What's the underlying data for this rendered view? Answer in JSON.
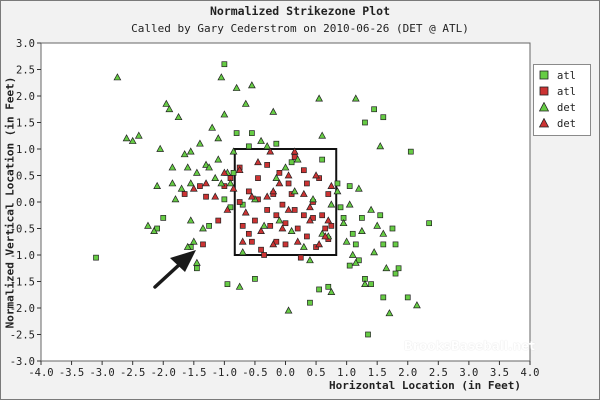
{
  "chart_data": {
    "type": "scatter",
    "title": "Normalized Strikezone Plot",
    "subtitle": "Called by Gary Cederstrom on 2010-06-26 (DET @ ATL)",
    "xlabel": "Horizontal Location (in Feet)",
    "ylabel": "Normalized Vertical Location (in Feet)",
    "xlim": [
      -4.0,
      4.0
    ],
    "ylim": [
      -3.0,
      3.0
    ],
    "x_ticks": [
      "-4.0",
      "-3.5",
      "-3.0",
      "-2.5",
      "-2.0",
      "-1.5",
      "-1.0",
      "-0.5",
      "0.0",
      "0.5",
      "1.0",
      "1.5",
      "2.0",
      "2.5",
      "3.0",
      "3.5",
      "4.0"
    ],
    "y_ticks": [
      "3.0",
      "2.5",
      "2.0",
      "1.5",
      "1.0",
      "0.5",
      "0.0",
      "-0.5",
      "-1.0",
      "-1.5",
      "-2.0",
      "-2.5",
      "-3.0"
    ],
    "grid": false,
    "legend_position": "top-right",
    "strike_zone": {
      "x": [
        -0.83,
        0.83
      ],
      "y": [
        -1.0,
        1.0
      ]
    },
    "series": [
      {
        "name": "atl",
        "marker": "square",
        "color": "#66cc44",
        "points": [
          [
            -3.1,
            -1.05
          ],
          [
            -2.1,
            -0.5
          ],
          [
            -2.0,
            -0.3
          ],
          [
            -1.55,
            -0.85
          ],
          [
            -1.45,
            -1.25
          ],
          [
            -1.25,
            -0.45
          ],
          [
            -1.0,
            2.6
          ],
          [
            -1.0,
            0.05
          ],
          [
            -0.95,
            -1.55
          ],
          [
            -0.8,
            1.3
          ],
          [
            -0.85,
            0.55
          ],
          [
            -0.9,
            -0.1
          ],
          [
            -0.7,
            -0.05
          ],
          [
            -0.6,
            1.05
          ],
          [
            -0.5,
            -1.45
          ],
          [
            -0.15,
            1.1
          ],
          [
            0.1,
            0.75
          ],
          [
            0.4,
            -1.9
          ],
          [
            0.6,
            0.8
          ],
          [
            0.55,
            -1.65
          ],
          [
            0.7,
            -1.6
          ],
          [
            0.85,
            0.35
          ],
          [
            0.9,
            -0.1
          ],
          [
            0.95,
            -0.3
          ],
          [
            1.05,
            0.3
          ],
          [
            1.1,
            -0.6
          ],
          [
            1.15,
            -0.8
          ],
          [
            1.25,
            -0.3
          ],
          [
            1.2,
            -1.1
          ],
          [
            1.05,
            -1.2
          ],
          [
            1.3,
            -1.45
          ],
          [
            1.3,
            1.5
          ],
          [
            1.45,
            1.75
          ],
          [
            1.55,
            -0.25
          ],
          [
            1.6,
            -0.8
          ],
          [
            1.4,
            -1.55
          ],
          [
            1.6,
            -1.8
          ],
          [
            1.35,
            -2.5
          ],
          [
            1.75,
            -0.5
          ],
          [
            1.8,
            -0.8
          ],
          [
            1.8,
            -1.35
          ],
          [
            1.85,
            -1.25
          ],
          [
            2.0,
            -1.8
          ],
          [
            2.05,
            0.95
          ],
          [
            2.35,
            -0.4
          ],
          [
            1.6,
            1.6
          ],
          [
            -0.55,
            1.3
          ]
        ]
      },
      {
        "name": "atl",
        "marker": "square",
        "color": "#cc3333",
        "points": [
          [
            -1.65,
            0.15
          ],
          [
            -1.4,
            0.3
          ],
          [
            -1.35,
            -0.8
          ],
          [
            -1.3,
            0.1
          ],
          [
            -1.1,
            -0.35
          ],
          [
            -1.0,
            0.3
          ],
          [
            -0.9,
            0.45
          ],
          [
            -0.75,
            0.0
          ],
          [
            -0.75,
            0.65
          ],
          [
            -0.7,
            -0.45
          ],
          [
            -0.6,
            0.2
          ],
          [
            -0.55,
            -0.75
          ],
          [
            -0.5,
            -0.35
          ],
          [
            -0.45,
            0.45
          ],
          [
            -0.45,
            0.05
          ],
          [
            -0.35,
            -1.0
          ],
          [
            -0.3,
            0.7
          ],
          [
            -0.3,
            -0.15
          ],
          [
            -0.25,
            -0.45
          ],
          [
            -0.2,
            0.15
          ],
          [
            -0.15,
            -0.25
          ],
          [
            -0.1,
            0.55
          ],
          [
            -0.05,
            -0.05
          ],
          [
            0.0,
            -0.4
          ],
          [
            0.0,
            -0.8
          ],
          [
            0.1,
            0.15
          ],
          [
            0.15,
            -0.15
          ],
          [
            0.15,
            0.85
          ],
          [
            0.2,
            -0.5
          ],
          [
            0.25,
            -1.05
          ],
          [
            0.3,
            -0.25
          ],
          [
            0.35,
            0.35
          ],
          [
            0.35,
            -0.65
          ],
          [
            0.45,
            0.0
          ],
          [
            0.5,
            -0.85
          ],
          [
            0.55,
            0.45
          ],
          [
            0.6,
            -0.25
          ],
          [
            0.65,
            -0.5
          ],
          [
            0.7,
            0.15
          ],
          [
            0.7,
            -0.7
          ],
          [
            0.75,
            -0.45
          ],
          [
            -0.4,
            -0.9
          ],
          [
            0.45,
            -0.3
          ],
          [
            0.05,
            0.35
          ],
          [
            -0.15,
            -0.75
          ],
          [
            0.3,
            0.6
          ],
          [
            -0.6,
            -0.6
          ]
        ]
      },
      {
        "name": "det",
        "marker": "triangle",
        "color": "#66cc44",
        "points": [
          [
            -2.75,
            2.35
          ],
          [
            -2.6,
            1.2
          ],
          [
            -2.5,
            1.15
          ],
          [
            -2.4,
            1.25
          ],
          [
            -2.25,
            -0.45
          ],
          [
            -2.15,
            -0.55
          ],
          [
            -2.05,
            1.0
          ],
          [
            -1.95,
            1.85
          ],
          [
            -1.9,
            1.75
          ],
          [
            -1.85,
            0.35
          ],
          [
            -1.85,
            0.65
          ],
          [
            -1.8,
            0.05
          ],
          [
            -1.75,
            1.6
          ],
          [
            -1.7,
            0.25
          ],
          [
            -1.65,
            0.9
          ],
          [
            -1.6,
            -0.85
          ],
          [
            -1.6,
            0.65
          ],
          [
            -1.55,
            -0.35
          ],
          [
            -1.55,
            0.95
          ],
          [
            -1.55,
            0.35
          ],
          [
            -1.5,
            -0.75
          ],
          [
            -1.45,
            0.55
          ],
          [
            -1.45,
            -1.15
          ],
          [
            -1.4,
            1.1
          ],
          [
            -1.35,
            -0.5
          ],
          [
            -1.3,
            0.7
          ],
          [
            -1.25,
            0.65
          ],
          [
            -1.2,
            1.4
          ],
          [
            -1.15,
            0.45
          ],
          [
            -1.1,
            1.2
          ],
          [
            -1.05,
            0.35
          ],
          [
            -1.05,
            2.35
          ],
          [
            -1.0,
            1.65
          ],
          [
            -0.95,
            0.55
          ],
          [
            -0.9,
            0.35
          ],
          [
            -0.85,
            0.95
          ],
          [
            -0.8,
            2.15
          ],
          [
            -0.75,
            -1.6
          ],
          [
            -0.7,
            -0.95
          ],
          [
            -0.65,
            1.85
          ],
          [
            -0.55,
            2.2
          ],
          [
            -0.5,
            0.05
          ],
          [
            -0.4,
            1.15
          ],
          [
            -0.3,
            1.05
          ],
          [
            -0.2,
            1.7
          ],
          [
            -0.15,
            0.45
          ],
          [
            -0.1,
            -0.35
          ],
          [
            0.0,
            0.65
          ],
          [
            0.05,
            -2.05
          ],
          [
            0.1,
            -0.55
          ],
          [
            0.15,
            0.2
          ],
          [
            0.2,
            0.8
          ],
          [
            0.3,
            -0.85
          ],
          [
            0.4,
            -1.1
          ],
          [
            0.45,
            0.05
          ],
          [
            0.55,
            1.95
          ],
          [
            0.6,
            1.25
          ],
          [
            0.7,
            -0.65
          ],
          [
            0.75,
            -0.05
          ],
          [
            0.75,
            -1.7
          ],
          [
            0.85,
            0.2
          ],
          [
            0.95,
            -0.4
          ],
          [
            1.0,
            -0.75
          ],
          [
            1.05,
            -0.05
          ],
          [
            1.1,
            -1.0
          ],
          [
            1.15,
            -1.15
          ],
          [
            1.2,
            0.25
          ],
          [
            1.25,
            -0.55
          ],
          [
            1.3,
            -1.55
          ],
          [
            1.4,
            -0.15
          ],
          [
            1.45,
            -0.95
          ],
          [
            1.5,
            -0.45
          ],
          [
            1.55,
            1.05
          ],
          [
            1.6,
            -0.6
          ],
          [
            1.65,
            -1.25
          ],
          [
            1.7,
            -2.1
          ],
          [
            2.15,
            -1.95
          ],
          [
            1.15,
            1.95
          ],
          [
            -1.1,
            0.8
          ],
          [
            -0.35,
            -0.45
          ],
          [
            0.6,
            -0.6
          ],
          [
            -2.1,
            0.3
          ]
        ]
      },
      {
        "name": "det",
        "marker": "triangle",
        "color": "#cc3333",
        "points": [
          [
            -1.5,
            0.25
          ],
          [
            -1.3,
            0.35
          ],
          [
            -1.15,
            0.1
          ],
          [
            -1.0,
            0.55
          ],
          [
            -0.95,
            -0.15
          ],
          [
            -0.85,
            0.25
          ],
          [
            -0.75,
            0.6
          ],
          [
            -0.65,
            -0.2
          ],
          [
            -0.55,
            0.1
          ],
          [
            -0.45,
            0.75
          ],
          [
            -0.4,
            -0.55
          ],
          [
            -0.3,
            0.1
          ],
          [
            -0.25,
            0.95
          ],
          [
            -0.2,
            -0.8
          ],
          [
            -0.1,
            0.35
          ],
          [
            -0.05,
            -0.5
          ],
          [
            0.05,
            -0.15
          ],
          [
            0.15,
            0.95
          ],
          [
            0.2,
            -0.75
          ],
          [
            0.3,
            0.15
          ],
          [
            0.4,
            -0.35
          ],
          [
            0.5,
            0.5
          ],
          [
            0.55,
            -0.8
          ],
          [
            0.65,
            -0.65
          ],
          [
            0.7,
            -0.35
          ],
          [
            0.75,
            0.3
          ],
          [
            -0.7,
            -0.75
          ],
          [
            0.05,
            0.5
          ],
          [
            0.4,
            -0.1
          ],
          [
            -0.2,
            0.2
          ]
        ]
      }
    ]
  },
  "legend": {
    "entries": [
      {
        "label": "atl",
        "marker": "square",
        "color": "#66cc44"
      },
      {
        "label": "atl",
        "marker": "square",
        "color": "#cc3333"
      },
      {
        "label": "det",
        "marker": "triangle",
        "color": "#66cc44"
      },
      {
        "label": "det",
        "marker": "triangle",
        "color": "#cc3333"
      }
    ]
  },
  "watermark": "BrooksBaseball.net"
}
